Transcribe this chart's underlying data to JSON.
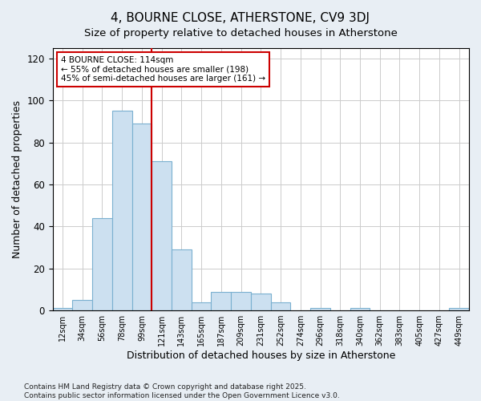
{
  "title": "4, BOURNE CLOSE, ATHERSTONE, CV9 3DJ",
  "subtitle": "Size of property relative to detached houses in Atherstone",
  "xlabel": "Distribution of detached houses by size in Atherstone",
  "ylabel": "Number of detached properties",
  "categories": [
    "12sqm",
    "34sqm",
    "56sqm",
    "78sqm",
    "99sqm",
    "121sqm",
    "143sqm",
    "165sqm",
    "187sqm",
    "209sqm",
    "231sqm",
    "252sqm",
    "274sqm",
    "296sqm",
    "318sqm",
    "340sqm",
    "362sqm",
    "383sqm",
    "405sqm",
    "427sqm",
    "449sqm"
  ],
  "values": [
    1,
    5,
    44,
    95,
    89,
    71,
    29,
    4,
    9,
    9,
    8,
    4,
    0,
    1,
    0,
    1,
    0,
    0,
    0,
    0,
    1
  ],
  "bar_color": "#cce0f0",
  "bar_edge_color": "#7ab0d0",
  "vline_x": 5,
  "vline_color": "#cc0000",
  "annotation_text": "4 BOURNE CLOSE: 114sqm\n← 55% of detached houses are smaller (198)\n45% of semi-detached houses are larger (161) →",
  "annotation_box_color": "#ffffff",
  "annotation_box_edge": "#cc0000",
  "ylim": [
    0,
    125
  ],
  "yticks": [
    0,
    20,
    40,
    60,
    80,
    100,
    120
  ],
  "footer": "Contains HM Land Registry data © Crown copyright and database right 2025.\nContains public sector information licensed under the Open Government Licence v3.0.",
  "bg_color": "#e8eef4",
  "plot_bg_color": "#ffffff",
  "grid_color": "#cccccc",
  "title_fontsize": 11,
  "subtitle_fontsize": 9.5,
  "footer_fontsize": 6.5
}
